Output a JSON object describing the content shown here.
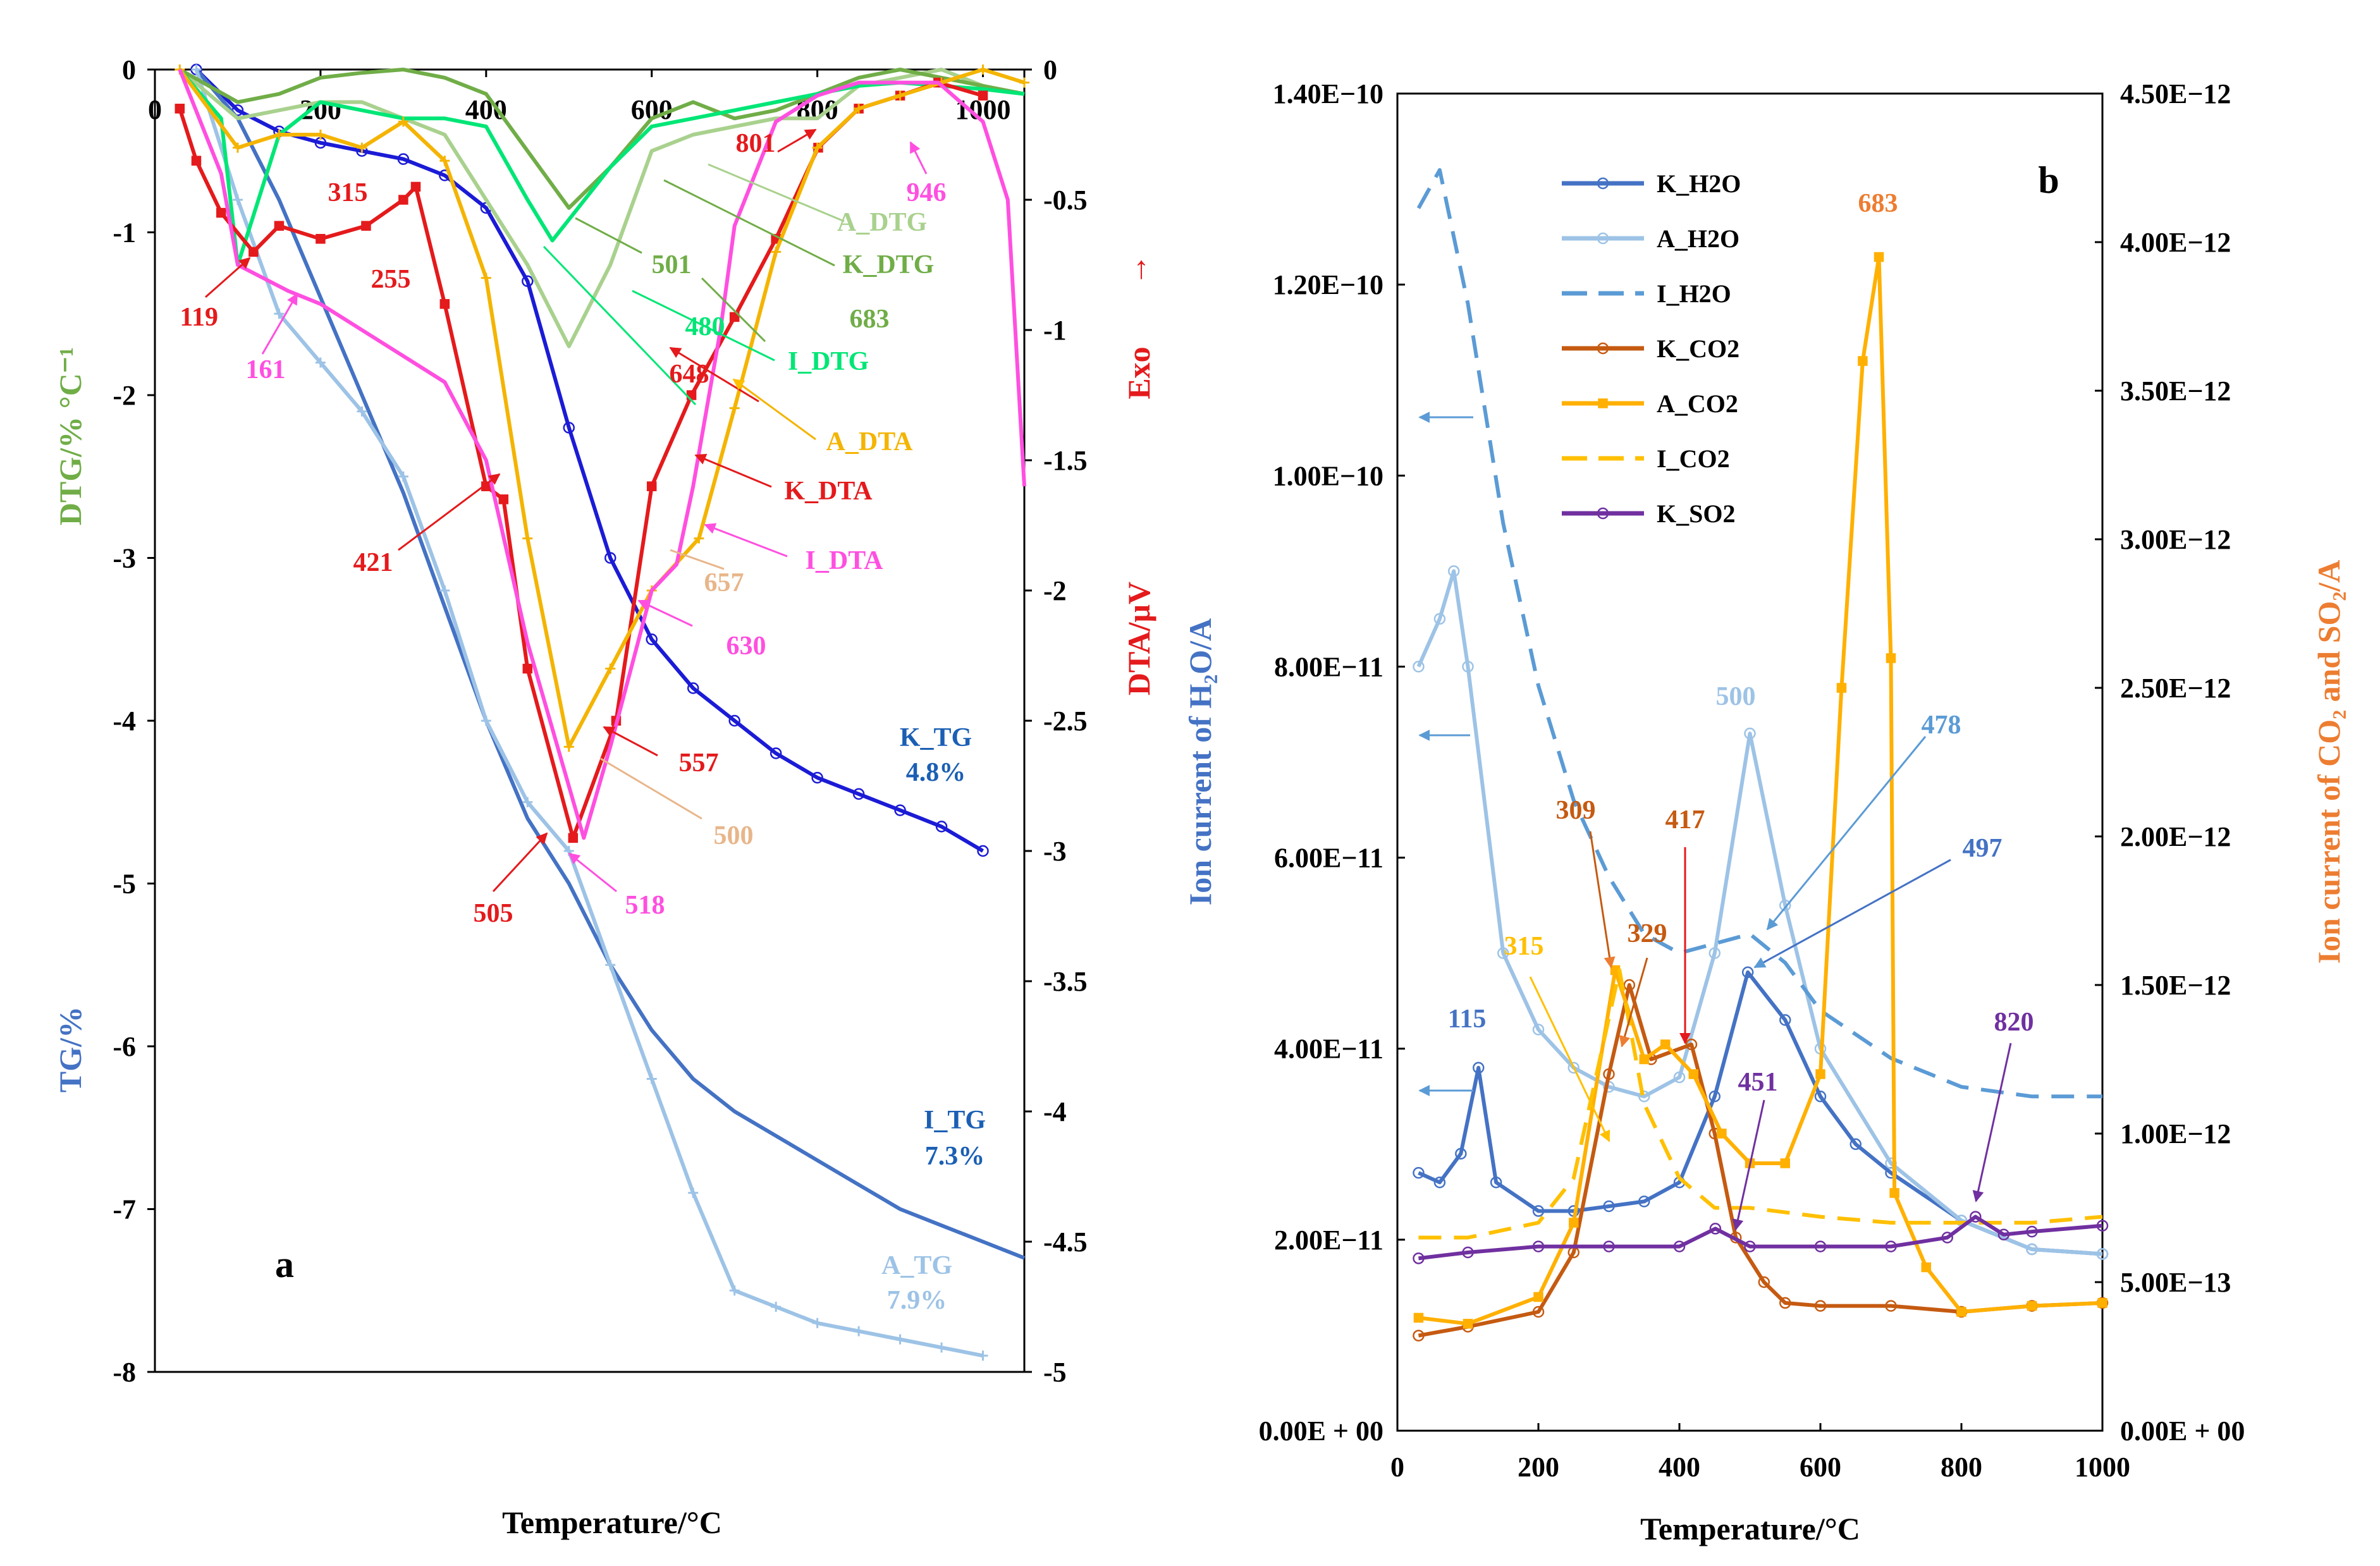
{
  "chart_data": [
    {
      "panel": "a",
      "type": "line",
      "xlabel": "Temperature/°C",
      "x_ticks": [
        "0",
        "200",
        "400",
        "600",
        "800",
        "1000"
      ],
      "xlim": [
        0,
        1050
      ],
      "ylabel_left_top": "DTG/% °C⁻¹",
      "ylabel_left_bottom": "TG/%",
      "ylim_left": [
        -8,
        0
      ],
      "y_ticks_left": [
        "0",
        "-1",
        "-2",
        "-3",
        "-4",
        "-5",
        "-6",
        "-7",
        "-8"
      ],
      "ylabel_right": "DTA/μV",
      "ylabel_right_exo": "Exo",
      "exo_arrow": "↑",
      "ylim_right": [
        -5,
        0
      ],
      "y_ticks_right": [
        "0",
        "-0.5",
        "-1",
        "-1.5",
        "-2",
        "-2.5",
        "-3",
        "-3.5",
        "-4",
        "-4.5",
        "-5"
      ],
      "series": [
        {
          "name": "K_TG",
          "axis": "left",
          "color": "#1b1bd6",
          "marker": "o",
          "x": [
            50,
            100,
            150,
            200,
            250,
            300,
            350,
            400,
            450,
            500,
            550,
            600,
            650,
            700,
            750,
            800,
            850,
            900,
            950,
            1000
          ],
          "values": [
            0,
            -0.25,
            -0.38,
            -0.45,
            -0.5,
            -0.55,
            -0.65,
            -0.85,
            -1.3,
            -2.2,
            -3.0,
            -3.5,
            -3.8,
            -4.0,
            -4.2,
            -4.35,
            -4.45,
            -4.55,
            -4.65,
            -4.8
          ]
        },
        {
          "name": "I_TG",
          "axis": "left",
          "color": "#4472c4",
          "marker": "none",
          "x": [
            50,
            100,
            150,
            200,
            250,
            300,
            350,
            400,
            450,
            500,
            550,
            600,
            650,
            700,
            750,
            800,
            850,
            900,
            950,
            1000,
            1050
          ],
          "values": [
            0,
            -0.3,
            -0.8,
            -1.4,
            -2.0,
            -2.6,
            -3.3,
            -4.0,
            -4.6,
            -5.0,
            -5.5,
            -5.9,
            -6.2,
            -6.4,
            -6.55,
            -6.7,
            -6.85,
            -7.0,
            -7.1,
            -7.2,
            -7.3
          ]
        },
        {
          "name": "A_TG",
          "axis": "left",
          "color": "#9dc3e6",
          "marker": "+",
          "x": [
            50,
            100,
            150,
            200,
            250,
            300,
            350,
            400,
            450,
            500,
            550,
            600,
            650,
            700,
            750,
            800,
            850,
            900,
            950,
            1000
          ],
          "values": [
            0,
            -0.8,
            -1.5,
            -1.8,
            -2.1,
            -2.5,
            -3.2,
            -4.0,
            -4.5,
            -4.8,
            -5.5,
            -6.2,
            -6.9,
            -7.5,
            -7.6,
            -7.7,
            -7.75,
            -7.8,
            -7.85,
            -7.9
          ]
        },
        {
          "name": "A_DTG",
          "axis": "left",
          "color": "#a9d18e",
          "marker": "none",
          "x": [
            30,
            100,
            150,
            200,
            250,
            300,
            350,
            400,
            450,
            500,
            550,
            600,
            650,
            700,
            750,
            800,
            850,
            900,
            950,
            1000
          ],
          "values": [
            0,
            -0.3,
            -0.25,
            -0.2,
            -0.2,
            -0.3,
            -0.4,
            -0.8,
            -1.2,
            -1.7,
            -1.2,
            -0.5,
            -0.4,
            -0.35,
            -0.3,
            -0.3,
            -0.1,
            -0.05,
            0,
            -0.1
          ]
        },
        {
          "name": "K_DTG",
          "axis": "left",
          "color": "#70ad47",
          "marker": "none",
          "x": [
            30,
            100,
            150,
            200,
            250,
            300,
            350,
            400,
            450,
            500,
            550,
            600,
            650,
            700,
            750,
            800,
            850,
            900,
            950,
            1000,
            1050
          ],
          "values": [
            0,
            -0.2,
            -0.15,
            -0.05,
            -0.02,
            0,
            -0.05,
            -0.15,
            -0.5,
            -0.85,
            -0.6,
            -0.3,
            -0.2,
            -0.3,
            -0.25,
            -0.15,
            -0.05,
            0,
            -0.05,
            -0.1,
            -0.15
          ]
        },
        {
          "name": "I_DTG",
          "axis": "left",
          "color": "#00e676",
          "marker": "none",
          "x": [
            30,
            80,
            100,
            150,
            200,
            250,
            300,
            350,
            400,
            450,
            480,
            550,
            600,
            650,
            700,
            750,
            800,
            850,
            900,
            950,
            1000,
            1050
          ],
          "values": [
            0,
            -0.3,
            -1.2,
            -0.4,
            -0.2,
            -0.25,
            -0.3,
            -0.3,
            -0.35,
            -0.8,
            -1.05,
            -0.6,
            -0.35,
            -0.3,
            -0.25,
            -0.2,
            -0.15,
            -0.1,
            -0.08,
            -0.1,
            -0.12,
            -0.15
          ]
        },
        {
          "name": "K_DTA",
          "axis": "right",
          "color": "#e41a1c",
          "marker": "s",
          "x": [
            30,
            50,
            80,
            119,
            150,
            200,
            255,
            300,
            315,
            350,
            400,
            421,
            450,
            505,
            557,
            600,
            648,
            700,
            750,
            801,
            850,
            900,
            946,
            1000
          ],
          "values": [
            -0.15,
            -0.35,
            -0.55,
            -0.7,
            -0.6,
            -0.65,
            -0.6,
            -0.5,
            -0.45,
            -0.9,
            -1.6,
            -1.65,
            -2.3,
            -2.95,
            -2.5,
            -1.6,
            -1.25,
            -0.95,
            -0.65,
            -0.3,
            -0.15,
            -0.1,
            -0.05,
            -0.1
          ]
        },
        {
          "name": "A_DTA",
          "axis": "right",
          "color": "#f4b400",
          "marker": "+",
          "x": [
            30,
            100,
            150,
            200,
            250,
            300,
            350,
            400,
            450,
            500,
            550,
            600,
            657,
            700,
            750,
            800,
            850,
            900,
            950,
            1000,
            1050
          ],
          "values": [
            0,
            -0.3,
            -0.25,
            -0.25,
            -0.3,
            -0.2,
            -0.35,
            -0.8,
            -1.8,
            -2.6,
            -2.3,
            -2.0,
            -1.8,
            -1.3,
            -0.7,
            -0.3,
            -0.15,
            -0.1,
            -0.05,
            0,
            -0.05
          ]
        },
        {
          "name": "I_DTA",
          "axis": "right",
          "color": "#ff4fe0",
          "marker": "none",
          "x": [
            30,
            80,
            100,
            161,
            200,
            250,
            300,
            350,
            400,
            450,
            518,
            550,
            600,
            630,
            650,
            683,
            700,
            750,
            800,
            850,
            900,
            946,
            1000,
            1030,
            1050
          ],
          "values": [
            0,
            -0.4,
            -0.75,
            -0.85,
            -0.9,
            -1.0,
            -1.1,
            -1.2,
            -1.5,
            -2.2,
            -2.95,
            -2.6,
            -2.0,
            -1.9,
            -1.6,
            -1.0,
            -0.6,
            -0.2,
            -0.1,
            -0.05,
            -0.05,
            -0.05,
            -0.2,
            -0.5,
            -1.6
          ]
        }
      ],
      "annotations": [
        {
          "text": "119",
          "color": "#e41a1c"
        },
        {
          "text": "161",
          "color": "#ff4fe0"
        },
        {
          "text": "315",
          "color": "#e41a1c"
        },
        {
          "text": "255",
          "color": "#e41a1c"
        },
        {
          "text": "421",
          "color": "#e41a1c"
        },
        {
          "text": "505",
          "color": "#e41a1c"
        },
        {
          "text": "518",
          "color": "#ff4fe0"
        },
        {
          "text": "557",
          "color": "#e41a1c"
        },
        {
          "text": "500",
          "color": "#e8b68a"
        },
        {
          "text": "480",
          "color": "#00e676"
        },
        {
          "text": "501",
          "color": "#70ad47"
        },
        {
          "text": "683",
          "color": "#70ad47"
        },
        {
          "text": "648",
          "color": "#e41a1c"
        },
        {
          "text": "657",
          "color": "#e8b68a"
        },
        {
          "text": "630",
          "color": "#ff4fe0"
        },
        {
          "text": "801",
          "color": "#e41a1c"
        },
        {
          "text": "946",
          "color": "#ff4fe0"
        }
      ],
      "series_labels": [
        {
          "text": "A_DTG",
          "color": "#a9d18e"
        },
        {
          "text": "K_DTG",
          "color": "#70ad47"
        },
        {
          "text": "I_DTG",
          "color": "#00e676"
        },
        {
          "text": "A_DTA",
          "color": "#f4b400"
        },
        {
          "text": "K_DTA",
          "color": "#e41a1c"
        },
        {
          "text": "I_DTA",
          "color": "#ff4fe0"
        },
        {
          "text": "K_TG",
          "color": "#1b5fb4"
        },
        {
          "text": "4.8%",
          "color": "#1b5fb4"
        },
        {
          "text": "I_TG",
          "color": "#1b5fb4"
        },
        {
          "text": "7.3%",
          "color": "#1b5fb4"
        },
        {
          "text": "A_TG",
          "color": "#9dc3e6"
        },
        {
          "text": "7.9%",
          "color": "#9dc3e6"
        }
      ]
    },
    {
      "panel": "b",
      "type": "line",
      "xlabel": "Temperature/°C",
      "x_ticks": [
        "0",
        "200",
        "400",
        "600",
        "800",
        "1000"
      ],
      "xlim": [
        0,
        1000
      ],
      "ylabel_left": "Ion current of H₂O/A",
      "ylim_left": [
        0,
        1.4e-10
      ],
      "y_ticks_left": [
        "0.00E + 00",
        "2.00E−11",
        "4.00E−11",
        "6.00E−11",
        "8.00E−11",
        "1.00E−10",
        "1.20E−10",
        "1.40E−10"
      ],
      "ylabel_right": "Ion current of CO₂ and SO₂/A",
      "ylim_right": [
        0,
        4.5e-12
      ],
      "y_ticks_right": [
        "0.00E + 00",
        "5.00E−13",
        "1.00E−12",
        "1.50E−12",
        "2.00E−12",
        "2.50E−12",
        "3.00E−12",
        "3.50E−12",
        "4.00E−12",
        "4.50E−12"
      ],
      "legend": [
        "K_H2O",
        "A_H2O",
        "I_H2O",
        "K_CO2",
        "A_CO2",
        "I_CO2",
        "K_SO2"
      ],
      "series": [
        {
          "name": "K_H2O",
          "axis": "left",
          "color": "#4472c4",
          "marker": "o",
          "dash": false,
          "x": [
            30,
            60,
            90,
            115,
            140,
            200,
            250,
            300,
            350,
            400,
            450,
            497,
            550,
            600,
            650,
            700,
            800,
            900,
            1000
          ],
          "values": [
            2.7e-11,
            2.6e-11,
            2.9e-11,
            3.8e-11,
            2.6e-11,
            2.3e-11,
            2.3e-11,
            2.35e-11,
            2.4e-11,
            2.6e-11,
            3.5e-11,
            4.8e-11,
            4.3e-11,
            3.5e-11,
            3e-11,
            2.7e-11,
            2.2e-11,
            1.9e-11,
            1.85e-11
          ]
        },
        {
          "name": "A_H2O",
          "axis": "left",
          "color": "#9dc3e6",
          "marker": "o",
          "dash": false,
          "x": [
            30,
            60,
            80,
            100,
            150,
            200,
            250,
            300,
            350,
            400,
            450,
            500,
            550,
            600,
            700,
            800,
            900,
            1000
          ],
          "values": [
            8e-11,
            8.5e-11,
            9e-11,
            8e-11,
            5e-11,
            4.2e-11,
            3.8e-11,
            3.6e-11,
            3.5e-11,
            3.7e-11,
            5e-11,
            7.3e-11,
            5.5e-11,
            4e-11,
            2.8e-11,
            2.2e-11,
            1.9e-11,
            1.85e-11
          ]
        },
        {
          "name": "I_H2O",
          "axis": "left",
          "color": "#5b9bd5",
          "marker": "none",
          "dash": true,
          "x": [
            30,
            60,
            100,
            150,
            200,
            250,
            300,
            350,
            400,
            450,
            500,
            550,
            600,
            700,
            800,
            900,
            1000
          ],
          "values": [
            1.28e-10,
            1.32e-10,
            1.18e-10,
            9.5e-11,
            7.8e-11,
            6.6e-11,
            5.8e-11,
            5.2e-11,
            5e-11,
            5.1e-11,
            5.2e-11,
            4.9e-11,
            4.4e-11,
            3.9e-11,
            3.6e-11,
            3.5e-11,
            3.5e-11
          ]
        },
        {
          "name": "K_CO2",
          "axis": "right",
          "color": "#c55a11",
          "marker": "o",
          "dash": false,
          "x": [
            30,
            100,
            200,
            250,
            300,
            329,
            360,
            417,
            450,
            480,
            520,
            550,
            600,
            700,
            800,
            900,
            1000
          ],
          "values": [
            3.2e-13,
            3.5e-13,
            4e-13,
            6e-13,
            1.2e-12,
            1.5e-12,
            1.25e-12,
            1.3e-12,
            1e-12,
            6.5e-13,
            5e-13,
            4.3e-13,
            4.2e-13,
            4.2e-13,
            4e-13,
            4.2e-13,
            4.3e-13
          ]
        },
        {
          "name": "A_CO2",
          "axis": "right",
          "color": "#ffb000",
          "marker": "s",
          "dash": false,
          "x": [
            30,
            100,
            200,
            250,
            309,
            350,
            380,
            420,
            460,
            500,
            550,
            600,
            630,
            660,
            683,
            700,
            705,
            750,
            800,
            900,
            1000
          ],
          "values": [
            3.8e-13,
            3.6e-13,
            4.5e-13,
            7e-13,
            1.55e-12,
            1.25e-12,
            1.3e-12,
            1.2e-12,
            1e-12,
            9e-13,
            9e-13,
            1.2e-12,
            2.5e-12,
            3.6e-12,
            3.95e-12,
            2.6e-12,
            8e-13,
            5.5e-13,
            4e-13,
            4.2e-13,
            4.3e-13
          ]
        },
        {
          "name": "I_CO2",
          "axis": "right",
          "color": "#ffc000",
          "marker": "none",
          "dash": true,
          "x": [
            30,
            100,
            200,
            250,
            315,
            350,
            400,
            450,
            500,
            600,
            700,
            800,
            900,
            1000
          ],
          "values": [
            6.5e-13,
            6.5e-13,
            7e-13,
            8.5e-13,
            1.55e-12,
            1.1e-12,
            8.5e-13,
            7.5e-13,
            7.5e-13,
            7.2e-13,
            7e-13,
            7e-13,
            7e-13,
            7.2e-13
          ]
        },
        {
          "name": "K_SO2",
          "axis": "right",
          "color": "#7030a0",
          "marker": "o",
          "dash": false,
          "x": [
            30,
            100,
            200,
            300,
            400,
            451,
            500,
            600,
            700,
            780,
            820,
            860,
            900,
            1000
          ],
          "values": [
            5.8e-13,
            6e-13,
            6.2e-13,
            6.2e-13,
            6.2e-13,
            6.8e-13,
            6.2e-13,
            6.2e-13,
            6.2e-13,
            6.5e-13,
            7.2e-13,
            6.6e-13,
            6.7e-13,
            6.9e-13
          ]
        }
      ],
      "annotations": [
        {
          "text": "115",
          "color": "#4472c4"
        },
        {
          "text": "500",
          "color": "#9dc3e6"
        },
        {
          "text": "478",
          "color": "#5b9bd5"
        },
        {
          "text": "497",
          "color": "#4472c4"
        },
        {
          "text": "309",
          "color": "#c55a11"
        },
        {
          "text": "329",
          "color": "#c55a11"
        },
        {
          "text": "417",
          "color": "#c55a11"
        },
        {
          "text": "315",
          "color": "#ffc000"
        },
        {
          "text": "683",
          "color": "#ed7d31"
        },
        {
          "text": "451",
          "color": "#7030a0"
        },
        {
          "text": "820",
          "color": "#7030a0"
        }
      ]
    }
  ]
}
